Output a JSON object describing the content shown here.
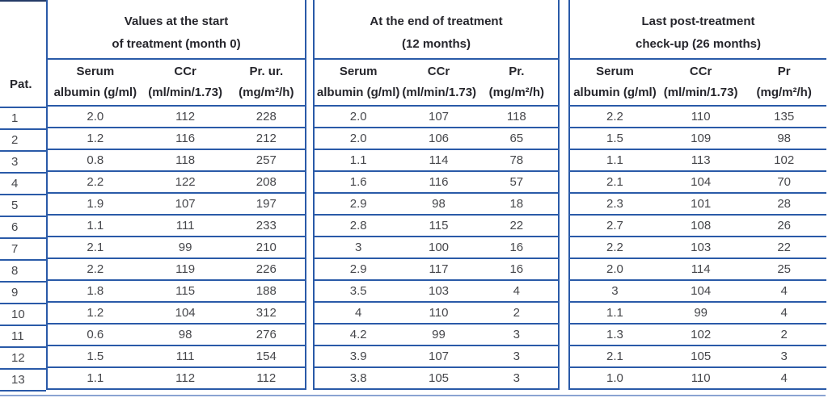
{
  "colors": {
    "border_blue": "#2a5aa8",
    "bottom_rule_blue": "#8aa3d2",
    "header_text": "#26262c",
    "data_text": "#46474b"
  },
  "table": {
    "pat_header": "Pat.",
    "sections": [
      {
        "title_line1": "Values at the start",
        "title_line2": "of treatment (month 0)",
        "columns": [
          {
            "line1": "Serum",
            "line2": "albumin (g/ml)"
          },
          {
            "line1": "CCr",
            "line2": "(ml/min/1.73)"
          },
          {
            "line1": "Pr. ur.",
            "line2": "(mg/m²/h)"
          }
        ]
      },
      {
        "title_line1": "At the end of treatment",
        "title_line2": "(12 months)",
        "columns": [
          {
            "line1": "Serum",
            "line2": "albumin (g/ml)"
          },
          {
            "line1": "CCr",
            "line2": "(ml/min/1.73)"
          },
          {
            "line1": "Pr.",
            "line2": "(mg/m²/h)"
          }
        ]
      },
      {
        "title_line1": "Last post-treatment",
        "title_line2": "check-up (26 months)",
        "columns": [
          {
            "line1": "Serum",
            "line2": "albumin (g/ml)"
          },
          {
            "line1": "CCr",
            "line2": "(ml/min/1.73)"
          },
          {
            "line1": "Pr",
            "line2": "(mg/m²/h)"
          }
        ]
      }
    ],
    "rows": [
      {
        "pat": "1",
        "s1": [
          "2.0",
          "112",
          "228"
        ],
        "s2": [
          "2.0",
          "107",
          "118"
        ],
        "s3": [
          "2.2",
          "110",
          "135"
        ]
      },
      {
        "pat": "2",
        "s1": [
          "1.2",
          "116",
          "212"
        ],
        "s2": [
          "2.0",
          "106",
          "65"
        ],
        "s3": [
          "1.5",
          "109",
          "98"
        ]
      },
      {
        "pat": "3",
        "s1": [
          "0.8",
          "118",
          "257"
        ],
        "s2": [
          "1.1",
          "114",
          "78"
        ],
        "s3": [
          "1.1",
          "113",
          "102"
        ]
      },
      {
        "pat": "4",
        "s1": [
          "2.2",
          "122",
          "208"
        ],
        "s2": [
          "1.6",
          "116",
          "57"
        ],
        "s3": [
          "2.1",
          "104",
          "70"
        ]
      },
      {
        "pat": "5",
        "s1": [
          "1.9",
          "107",
          "197"
        ],
        "s2": [
          "2.9",
          "98",
          "18"
        ],
        "s3": [
          "2.3",
          "101",
          "28"
        ]
      },
      {
        "pat": "6",
        "s1": [
          "1.1",
          "111",
          "233"
        ],
        "s2": [
          "2.8",
          "115",
          "22"
        ],
        "s3": [
          "2.7",
          "108",
          "26"
        ]
      },
      {
        "pat": "7",
        "s1": [
          "2.1",
          "99",
          "210"
        ],
        "s2": [
          "3",
          "100",
          "16"
        ],
        "s3": [
          "2.2",
          "103",
          "22"
        ]
      },
      {
        "pat": "8",
        "s1": [
          "2.2",
          "119",
          "226"
        ],
        "s2": [
          "2.9",
          "117",
          "16"
        ],
        "s3": [
          "2.0",
          "114",
          "25"
        ]
      },
      {
        "pat": "9",
        "s1": [
          "1.8",
          "115",
          "188"
        ],
        "s2": [
          "3.5",
          "103",
          "4"
        ],
        "s3": [
          "3",
          "104",
          "4"
        ]
      },
      {
        "pat": "10",
        "s1": [
          "1.2",
          "104",
          "312"
        ],
        "s2": [
          "4",
          "110",
          "2"
        ],
        "s3": [
          "1.1",
          "99",
          "4"
        ]
      },
      {
        "pat": "11",
        "s1": [
          "0.6",
          "98",
          "276"
        ],
        "s2": [
          "4.2",
          "99",
          "3"
        ],
        "s3": [
          "1.3",
          "102",
          "2"
        ]
      },
      {
        "pat": "12",
        "s1": [
          "1.5",
          "111",
          "154"
        ],
        "s2": [
          "3.9",
          "107",
          "3"
        ],
        "s3": [
          "2.1",
          "105",
          "3"
        ]
      },
      {
        "pat": "13",
        "s1": [
          "1.1",
          "112",
          "112"
        ],
        "s2": [
          "3.8",
          "105",
          "3"
        ],
        "s3": [
          "1.0",
          "110",
          "4"
        ]
      }
    ]
  }
}
